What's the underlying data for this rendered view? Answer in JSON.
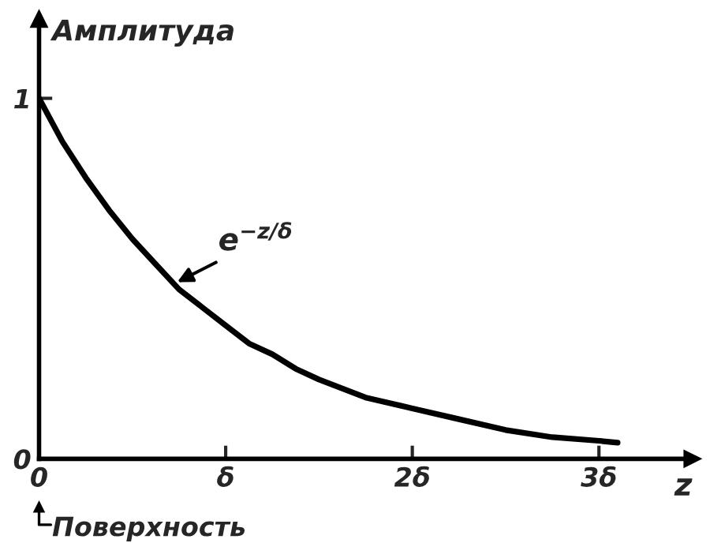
{
  "chart_data": {
    "type": "line",
    "ylabel": "Амплитуда",
    "xlabel": "z",
    "x": [
      0,
      0.125,
      0.25,
      0.375,
      0.5,
      0.625,
      0.75,
      0.875,
      1,
      1.125,
      1.25,
      1.375,
      1.5,
      1.75,
      2,
      2.25,
      2.5,
      2.75,
      3,
      3.1
    ],
    "series": [
      {
        "color": "#000000",
        "values": [
          1.0,
          0.88,
          0.78,
          0.69,
          0.61,
          0.54,
          0.47,
          0.42,
          0.37,
          0.32,
          0.29,
          0.25,
          0.22,
          0.17,
          0.14,
          0.11,
          0.08,
          0.06,
          0.05,
          0.045
        ]
      }
    ],
    "xlim": [
      0,
      3.5
    ],
    "ylim": [
      0,
      1.22
    ],
    "xticks": [
      0,
      {
        "value": 1,
        "label": "δ"
      },
      {
        "value": 2,
        "label": "2δ"
      },
      {
        "value": 3,
        "label": "3δ"
      }
    ],
    "yticks": [
      0,
      1
    ],
    "annotations": [
      {
        "text": "e$^{−z/δ}$",
        "x": 0.74,
        "y": 0.49
      },
      "Поверхность"
    ],
    "grid": false,
    "marker": "none",
    "line_style": "solid"
  }
}
